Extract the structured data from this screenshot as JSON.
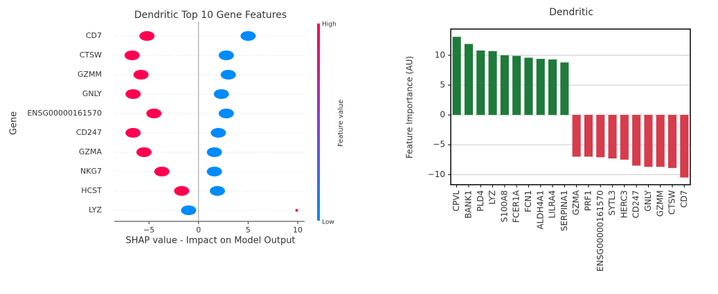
{
  "chart_data": [
    {
      "type": "violin",
      "title": "Dendritic Top 10 Gene Features",
      "x_label": "SHAP value - Impact on Model Output",
      "y_label": "Gene",
      "categories": [
        "CD7",
        "CTSW",
        "GZMM",
        "GNLY",
        "ENSG00000161570",
        "CD247",
        "GZMA",
        "NKG7",
        "HCST",
        "LYZ"
      ],
      "series": [
        {
          "name": "High",
          "color": "#ff0051",
          "values": [
            -5.2,
            -6.7,
            -5.8,
            -6.6,
            -4.5,
            -6.6,
            -5.5,
            -3.7,
            -1.7,
            9.9
          ]
        },
        {
          "name": "Low",
          "color": "#008bfb",
          "values": [
            5.0,
            2.8,
            3.0,
            2.3,
            2.8,
            2.0,
            1.6,
            1.6,
            1.9,
            -1.0
          ]
        }
      ],
      "colorbar_label": "Feature value",
      "xlim": [
        -8.5,
        10.7
      ],
      "xticks": [
        {
          "value": -5,
          "label": "−5"
        },
        0,
        5,
        10
      ]
    },
    {
      "type": "bar",
      "title": "Dendritic",
      "y_label": "Feature Importance (AU)",
      "categories": [
        "CPVL",
        "BANK1",
        "PLD4",
        "LYZ",
        "S100A8",
        "FCER1A",
        "FCN1",
        "ALDH4A1",
        "LILRA4",
        "SERPINA1",
        "GZMA",
        "PRF1",
        "ENSG00000161570",
        "SYTL3",
        "HERC3",
        "CD247",
        "GNLY",
        "GZMM",
        "CTSW",
        "CD7"
      ],
      "values": [
        13.1,
        11.9,
        10.8,
        10.7,
        10.0,
        9.9,
        9.6,
        9.4,
        9.3,
        8.8,
        -7.0,
        -7.0,
        -7.1,
        -7.3,
        -7.5,
        -8.5,
        -8.7,
        -8.7,
        -8.9,
        -10.5
      ],
      "colors": [
        "#1e7b3a",
        "#1e7b3a",
        "#1e7b3a",
        "#1e7b3a",
        "#1e7b3a",
        "#1e7b3a",
        "#1e7b3a",
        "#1e7b3a",
        "#1e7b3a",
        "#1e7b3a",
        "#d63c4c",
        "#d63c4c",
        "#d63c4c",
        "#d63c4c",
        "#d63c4c",
        "#d63c4c",
        "#d63c4c",
        "#d63c4c",
        "#d63c4c",
        "#d63c4c"
      ],
      "ylim": [
        -11.7,
        14.4
      ],
      "yticks": [
        {
          "value": -10,
          "label": "−10"
        },
        {
          "value": -5,
          "label": "−5"
        },
        0,
        5,
        10
      ],
      "grid": true
    }
  ]
}
